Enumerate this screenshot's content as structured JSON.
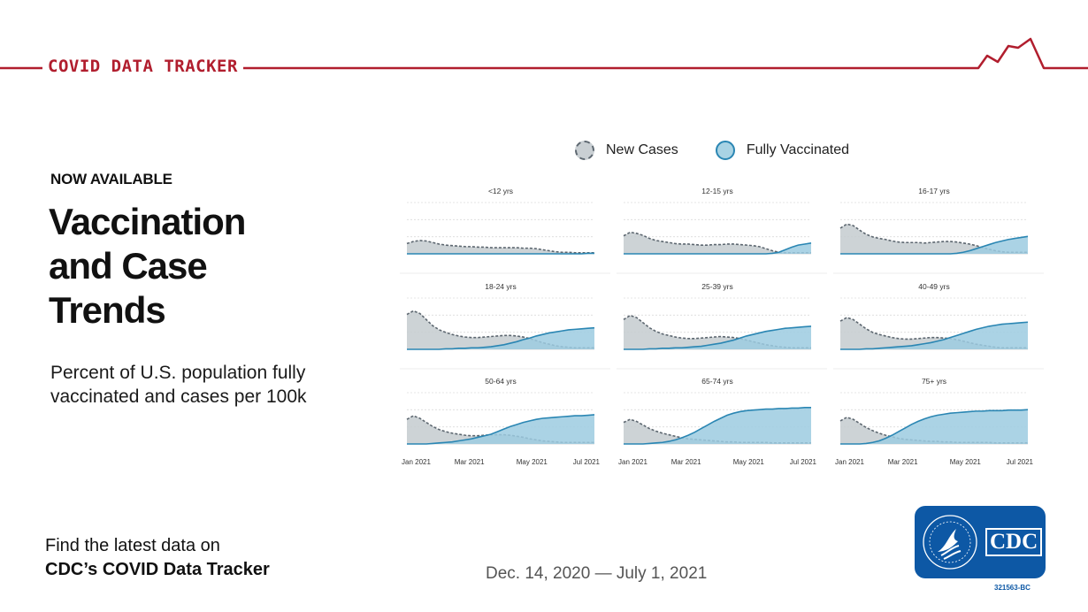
{
  "brand": "COVID DATA TRACKER",
  "kicker": "NOW AVAILABLE",
  "headline": [
    "Vaccination",
    "and Case",
    "Trends"
  ],
  "subtitle": "Percent of U.S. population fully vaccinated and cases per 100k",
  "footer": {
    "line1": "Find the latest data on",
    "line2": "CDC’s COVID Data Tracker"
  },
  "date_range": "Dec. 14, 2020 — July 1, 2021",
  "logo": {
    "text": "CDC",
    "code": "321563-BC"
  },
  "legend": [
    {
      "name": "New Cases",
      "color": "#c9cfd3"
    },
    {
      "name": "Fully Vaccinated",
      "color": "#a9d3e4"
    }
  ],
  "colors": {
    "brand_red": "#b11e2e",
    "cdc_blue": "#0d58a5",
    "cases_fill": "#c4cbcf",
    "cases_line": "#5d6770",
    "vax_fill": "#9ccbe0",
    "vax_line": "#2a86b3"
  },
  "chart_data": {
    "type": "area",
    "title": "",
    "x_ticks": [
      "Jan 2021",
      "Mar 2021",
      "May 2021",
      "Jul 2021"
    ],
    "y_range": [
      0,
      100
    ],
    "grid": true,
    "x": [
      0,
      1,
      2,
      3,
      4,
      5,
      6,
      7,
      8,
      9,
      10,
      11,
      12,
      13,
      14,
      15,
      16,
      17,
      18,
      19,
      20,
      21,
      22,
      23,
      24,
      25,
      26,
      27,
      28,
      29
    ],
    "panels": [
      {
        "label": "<12 yrs",
        "series": [
          {
            "name": "New Cases",
            "values": [
              20,
              24,
              26,
              25,
              22,
              19,
              17,
              16,
              15,
              14,
              14,
              13,
              13,
              12,
              12,
              12,
              12,
              12,
              11,
              11,
              10,
              8,
              6,
              4,
              3,
              3,
              2,
              2,
              2,
              2
            ]
          },
          {
            "name": "Fully Vaccinated",
            "values": [
              0,
              0,
              0,
              0,
              0,
              0,
              0,
              0,
              0,
              0,
              0,
              0,
              0,
              0,
              0,
              0,
              0,
              0,
              0,
              0,
              0,
              0,
              0,
              0,
              0,
              0,
              0,
              0,
              1,
              1
            ]
          }
        ]
      },
      {
        "label": "12-15 yrs",
        "series": [
          {
            "name": "New Cases",
            "values": [
              35,
              42,
              40,
              36,
              30,
              26,
              24,
              22,
              20,
              19,
              19,
              18,
              17,
              17,
              18,
              18,
              19,
              19,
              18,
              17,
              16,
              14,
              10,
              6,
              3,
              2,
              2,
              2,
              2,
              2
            ]
          },
          {
            "name": "Fully Vaccinated",
            "values": [
              0,
              0,
              0,
              0,
              0,
              0,
              0,
              0,
              0,
              0,
              0,
              0,
              0,
              0,
              0,
              0,
              0,
              0,
              0,
              0,
              0,
              0,
              0,
              1,
              3,
              8,
              13,
              17,
              19,
              21
            ]
          }
        ]
      },
      {
        "label": "16-17 yrs",
        "series": [
          {
            "name": "New Cases",
            "values": [
              50,
              58,
              55,
              46,
              38,
              33,
              30,
              28,
              25,
              23,
              22,
              22,
              22,
              21,
              22,
              23,
              24,
              24,
              23,
              21,
              19,
              16,
              12,
              9,
              6,
              4,
              3,
              3,
              3,
              3
            ]
          },
          {
            "name": "Fully Vaccinated",
            "values": [
              0,
              0,
              0,
              0,
              0,
              0,
              0,
              0,
              0,
              0,
              0,
              0,
              0,
              0,
              0,
              0,
              0,
              0,
              1,
              3,
              6,
              10,
              14,
              18,
              22,
              25,
              28,
              30,
              32,
              34
            ]
          }
        ]
      },
      {
        "label": "18-24 yrs",
        "series": [
          {
            "name": "New Cases",
            "values": [
              68,
              75,
              70,
              58,
              46,
              38,
              33,
              29,
              26,
              24,
              23,
              23,
              24,
              25,
              26,
              27,
              27,
              26,
              24,
              21,
              17,
              13,
              10,
              7,
              5,
              4,
              3,
              3,
              3,
              3
            ]
          },
          {
            "name": "Fully Vaccinated",
            "values": [
              0,
              0,
              0,
              0,
              0,
              0,
              1,
              1,
              2,
              2,
              3,
              3,
              4,
              5,
              7,
              9,
              12,
              15,
              19,
              22,
              26,
              29,
              32,
              34,
              36,
              38,
              39,
              40,
              41,
              42
            ]
          }
        ]
      },
      {
        "label": "25-39 yrs",
        "series": [
          {
            "name": "New Cases",
            "values": [
              58,
              66,
              62,
              52,
              42,
              35,
              30,
              27,
              24,
              22,
              21,
              21,
              22,
              23,
              24,
              25,
              24,
              23,
              21,
              18,
              15,
              12,
              9,
              7,
              5,
              4,
              3,
              3,
              3,
              3
            ]
          },
          {
            "name": "Fully Vaccinated",
            "values": [
              0,
              0,
              0,
              0,
              1,
              1,
              2,
              2,
              3,
              3,
              4,
              5,
              6,
              8,
              10,
              12,
              15,
              18,
              22,
              26,
              29,
              32,
              35,
              37,
              39,
              41,
              42,
              43,
              44,
              45
            ]
          }
        ]
      },
      {
        "label": "40-49 yrs",
        "series": [
          {
            "name": "New Cases",
            "values": [
              55,
              62,
              58,
              49,
              40,
              33,
              29,
              26,
              23,
              21,
              20,
              20,
              21,
              22,
              23,
              23,
              22,
              21,
              19,
              16,
              13,
              10,
              8,
              6,
              4,
              3,
              3,
              3,
              3,
              3
            ]
          },
          {
            "name": "Fully Vaccinated",
            "values": [
              0,
              0,
              0,
              0,
              1,
              1,
              2,
              3,
              4,
              5,
              6,
              7,
              9,
              11,
              13,
              16,
              19,
              23,
              27,
              31,
              35,
              39,
              42,
              45,
              47,
              49,
              50,
              51,
              52,
              53
            ]
          }
        ]
      },
      {
        "label": "50-64 yrs",
        "series": [
          {
            "name": "New Cases",
            "values": [
              48,
              55,
              50,
              42,
              34,
              28,
              24,
              21,
              19,
              17,
              16,
              16,
              17,
              18,
              18,
              18,
              17,
              15,
              13,
              10,
              8,
              6,
              5,
              4,
              3,
              3,
              3,
              3,
              3,
              3
            ]
          },
          {
            "name": "Fully Vaccinated",
            "values": [
              0,
              0,
              0,
              0,
              1,
              2,
              3,
              4,
              6,
              8,
              10,
              13,
              16,
              19,
              24,
              29,
              34,
              38,
              42,
              45,
              48,
              50,
              51,
              52,
              53,
              54,
              55,
              55,
              56,
              57
            ]
          }
        ]
      },
      {
        "label": "65-74 yrs",
        "series": [
          {
            "name": "New Cases",
            "values": [
              42,
              48,
              44,
              37,
              30,
              25,
              21,
              18,
              15,
              12,
              10,
              9,
              8,
              7,
              6,
              5,
              4,
              4,
              3,
              3,
              3,
              3,
              3,
              2,
              2,
              2,
              2,
              2,
              2,
              2
            ]
          },
          {
            "name": "Fully Vaccinated",
            "values": [
              0,
              0,
              0,
              0,
              1,
              2,
              3,
              5,
              8,
              12,
              17,
              23,
              30,
              37,
              44,
              50,
              56,
              60,
              63,
              65,
              66,
              67,
              68,
              68,
              69,
              69,
              70,
              70,
              71,
              71
            ]
          }
        ]
      },
      {
        "label": "75+ yrs",
        "series": [
          {
            "name": "New Cases",
            "values": [
              45,
              52,
              48,
              40,
              32,
              26,
              21,
              17,
              14,
              11,
              9,
              8,
              7,
              6,
              5,
              5,
              4,
              4,
              3,
              3,
              3,
              3,
              3,
              3,
              2,
              2,
              2,
              2,
              2,
              2
            ]
          },
          {
            "name": "Fully Vaccinated",
            "values": [
              0,
              0,
              0,
              0,
              1,
              3,
              6,
              11,
              17,
              24,
              31,
              38,
              44,
              49,
              53,
              56,
              58,
              60,
              61,
              62,
              63,
              64,
              64,
              65,
              65,
              65,
              66,
              66,
              66,
              67
            ]
          }
        ]
      }
    ]
  }
}
